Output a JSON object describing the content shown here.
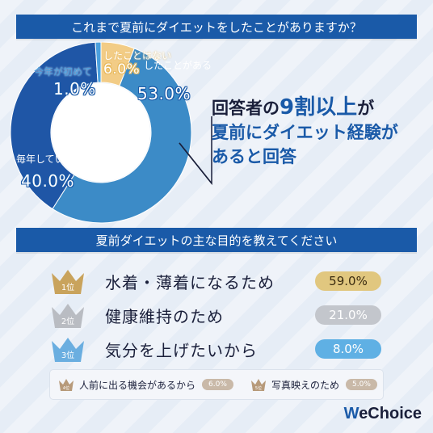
{
  "section1": {
    "title": "これまで夏前にダイエットをしたことがありますか？"
  },
  "callout": {
    "line1_pre": "回答者の",
    "line1_emph": "9割以上",
    "line1_post": "が",
    "line2": "夏前にダイエット経験が",
    "line3": "あると回答"
  },
  "section2": {
    "title": "夏前ダイエットの主な目的を教えてください"
  },
  "rankings": [
    {
      "rank": "1位",
      "label": "水着・薄着になるため",
      "value": "59.0%",
      "crown_color": "#c9a35c",
      "pill_color": "#e1c77f"
    },
    {
      "rank": "2位",
      "label": "健康維持のため",
      "value": "21.0%",
      "crown_color": "#b9bcc2",
      "pill_color": "#c3c6cc"
    },
    {
      "rank": "3位",
      "label": "気分を上げたいから",
      "value": "8.0%",
      "crown_color": "#6aaee0",
      "pill_color": "#5fb0e4"
    }
  ],
  "minor": [
    {
      "rank": "4位",
      "label": "人前に出る機会があるから",
      "value": "6.0%"
    },
    {
      "rank": "5位",
      "label": "写真映えのため",
      "value": "5.0%"
    }
  ],
  "logo": {
    "w": "W",
    "rest": "eChoice"
  },
  "colors": {
    "accent": "#1a5aa8",
    "slice1": "#3c8bc7",
    "slice2": "#1f56a6",
    "slice3": "#4aa0de",
    "slice4": "#f2cc86"
  },
  "chart_data": {
    "type": "pie",
    "title": "これまで夏前にダイエットをしたことがありますか？",
    "categories": [
      "したことがある",
      "毎年している",
      "今年が初めて",
      "したことはない"
    ],
    "values": [
      53.0,
      40.0,
      1.0,
      6.0
    ],
    "value_labels": [
      "53.0%",
      "40.0%",
      "1.0%",
      "6.0%"
    ],
    "legend": "none"
  }
}
